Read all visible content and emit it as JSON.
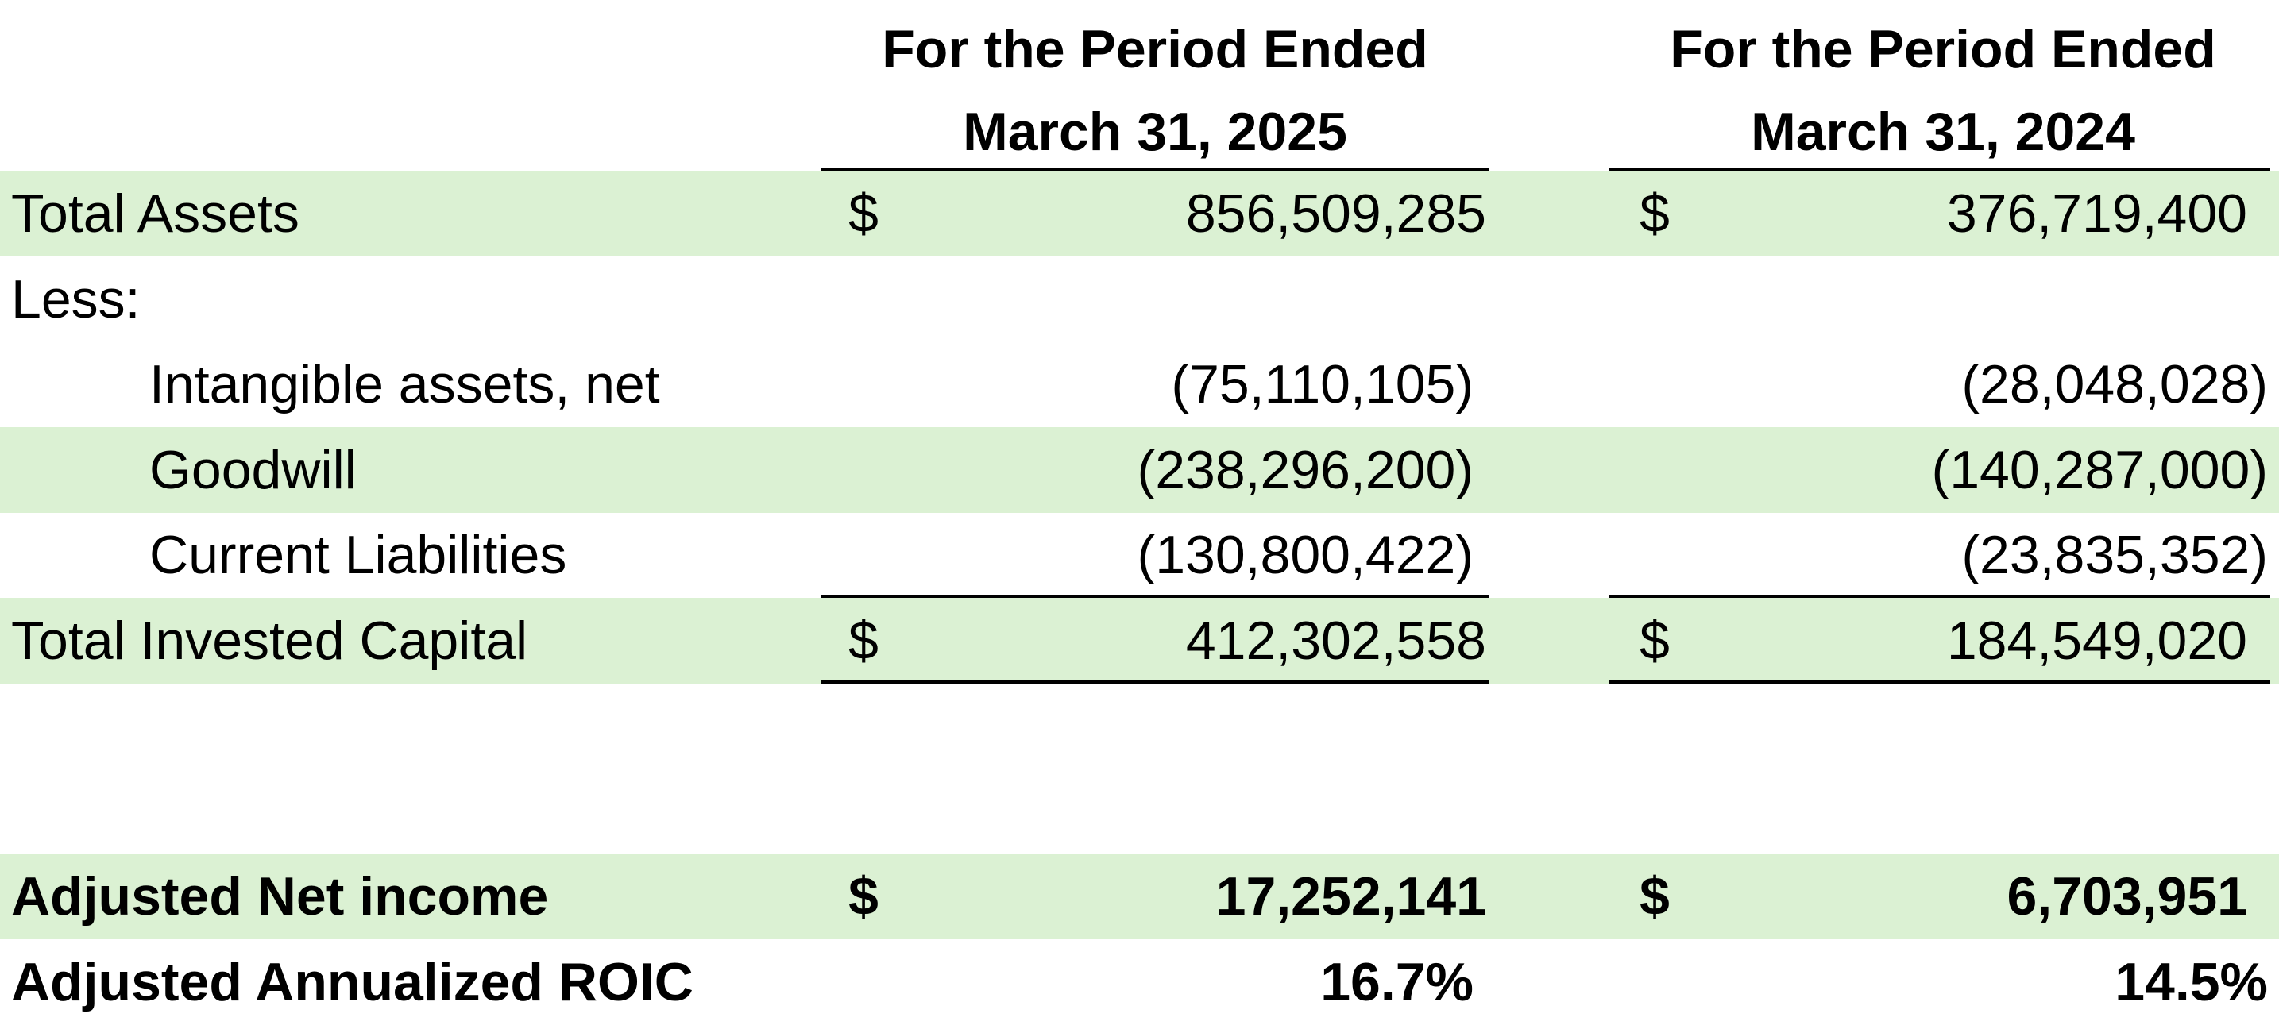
{
  "headers": {
    "col1_line1": "For the Period Ended",
    "col1_line2": "March 31, 2025",
    "col2_line1": "For the Period Ended",
    "col2_line2": "March 31, 2024"
  },
  "currency_symbol": "$",
  "rows": {
    "total_assets": {
      "label": "Total Assets",
      "v2025": "856,509,285",
      "v2024": "376,719,400"
    },
    "less": {
      "label": "Less:"
    },
    "intangible": {
      "label": "Intangible assets, net",
      "v2025": "(75,110,105)",
      "v2024": "(28,048,028)"
    },
    "goodwill": {
      "label": "Goodwill",
      "v2025": "(238,296,200)",
      "v2024": "(140,287,000)"
    },
    "current_liabilities": {
      "label": "Current Liabilities",
      "v2025": "(130,800,422)",
      "v2024": "(23,835,352)"
    },
    "total_invested": {
      "label": "Total Invested Capital",
      "v2025": "412,302,558",
      "v2024": "184,549,020"
    },
    "adj_net_income": {
      "label": "Adjusted Net income",
      "v2025": "17,252,141",
      "v2024": "6,703,951"
    },
    "adj_roic": {
      "label": "Adjusted Annualized ROIC",
      "v2025": "16.7%",
      "v2024": "14.5%"
    }
  },
  "colors": {
    "band": "#dbf1d3",
    "text": "#000000"
  }
}
